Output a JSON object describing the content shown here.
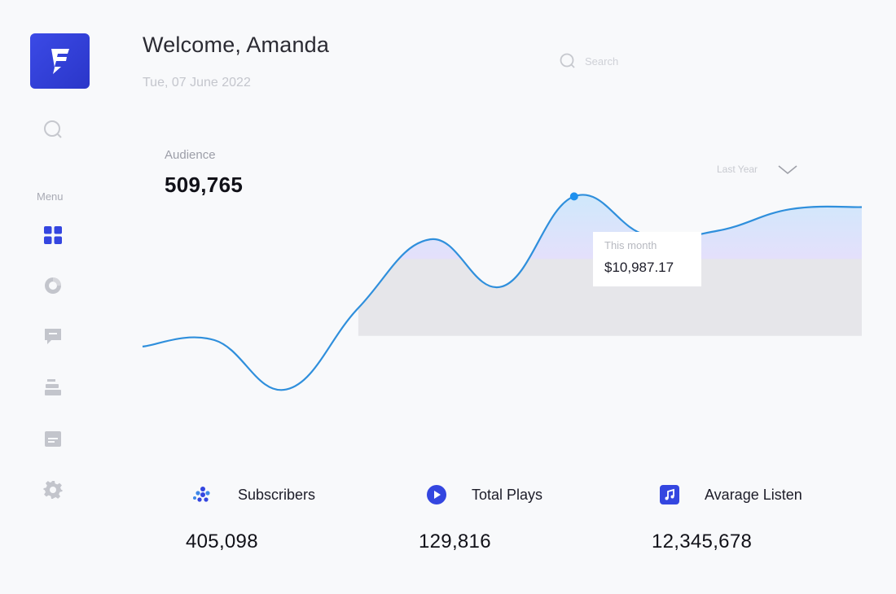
{
  "header": {
    "welcome": "Welcome, Amanda",
    "date": "Tue, 07 June 2022",
    "search_placeholder": "Search"
  },
  "sidebar": {
    "menu_label": "Menu",
    "items": [
      {
        "name": "dashboard",
        "icon": "dashboard-grid-icon",
        "active": true
      },
      {
        "name": "analytics",
        "icon": "pie-chart-icon",
        "active": false
      },
      {
        "name": "messages",
        "icon": "chat-bubble-icon",
        "active": false
      },
      {
        "name": "library",
        "icon": "stack-icon",
        "active": false
      },
      {
        "name": "calendar",
        "icon": "calendar-icon",
        "active": false
      },
      {
        "name": "settings",
        "icon": "gear-icon",
        "active": false
      }
    ]
  },
  "audience": {
    "label": "Audience",
    "value": "509,765",
    "period": "Last Year"
  },
  "tooltip": {
    "label": "This month",
    "value": "$10,987.17"
  },
  "chart_data": {
    "type": "area",
    "title": "",
    "x": [
      0,
      1,
      2,
      3,
      4,
      5,
      6,
      7,
      8,
      9,
      10
    ],
    "series": [
      {
        "values": [
          30,
          33,
          10,
          48,
          80,
          58,
          100,
          82,
          84,
          94,
          95
        ]
      }
    ],
    "highlight_index": 6,
    "ylim": [
      0,
      110
    ],
    "grid": false,
    "line_color": "#2f8fdc"
  },
  "stats": [
    {
      "label": "Subscribers",
      "value": "405,098",
      "icon": "users-cluster-icon"
    },
    {
      "label": "Total Plays",
      "value": "129,816",
      "icon": "play-circle-icon"
    },
    {
      "label": "Avarage Listen",
      "value": "12,345,678",
      "icon": "music-note-icon"
    }
  ],
  "colors": {
    "accent": "#3446e0",
    "line": "#2f8fdc",
    "fill_blue": "#d4e9fb",
    "fill_purple": "#e4e0fb",
    "fill_gray": "#e6e6ea"
  }
}
